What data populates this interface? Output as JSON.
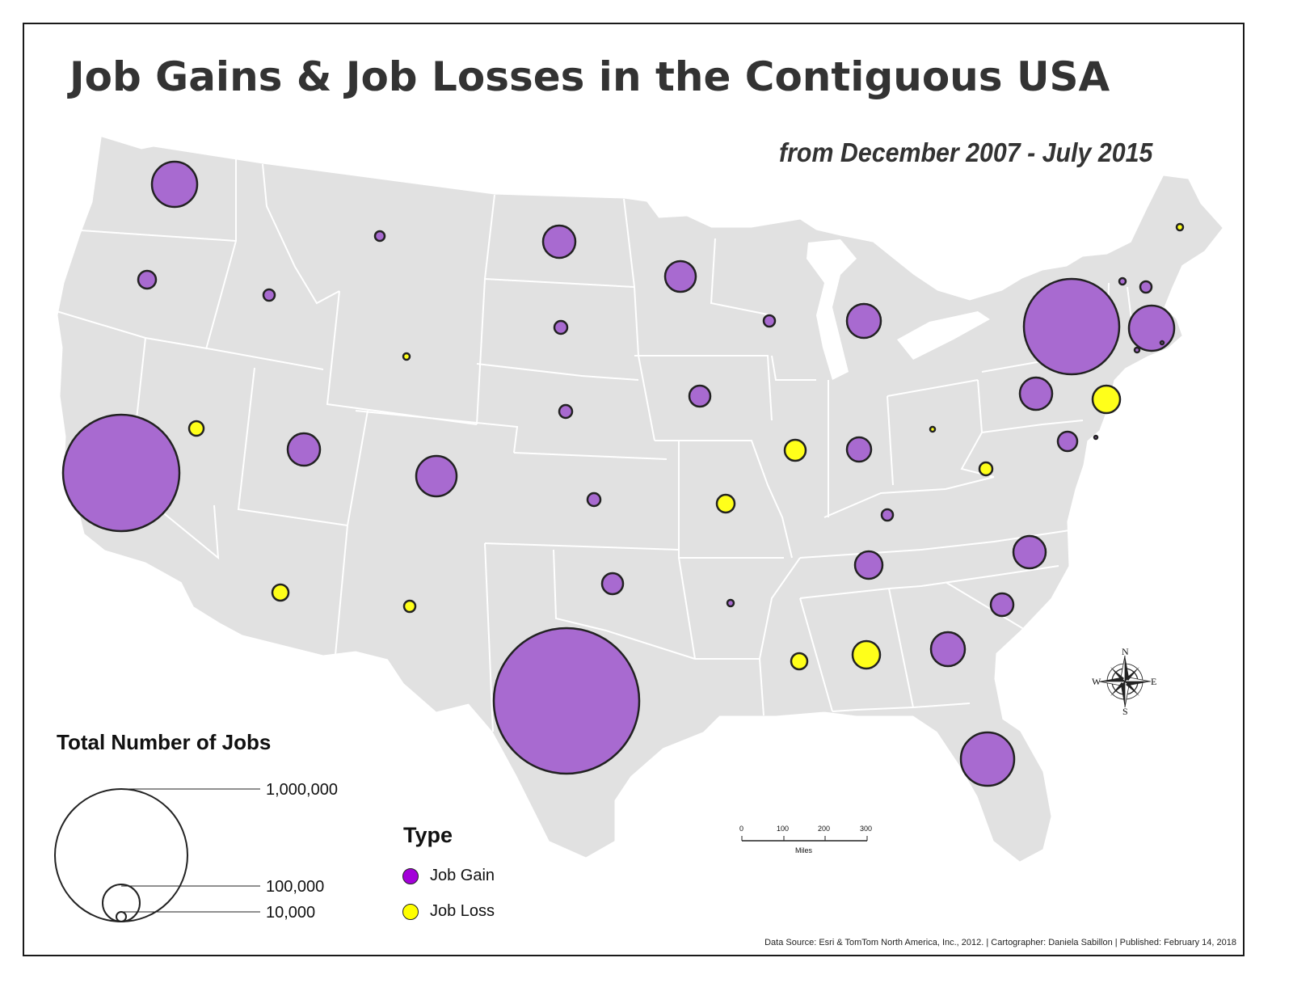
{
  "map": {
    "title": "Job Gains & Job Losses in the Contiguous USA",
    "subtitle": "from December 2007 - July 2015",
    "region": "Contiguous United States",
    "colors": {
      "land": "#e1e1e1",
      "borders": "#ffffff",
      "job_gain": "#a86ad0",
      "job_loss": "#ffff1a",
      "outline": "#222222"
    }
  },
  "legend": {
    "size_title": "Total Number of Jobs",
    "size_labels": [
      "1,000,000",
      "100,000",
      "10,000"
    ],
    "type_title": "Type",
    "types": [
      {
        "label": "Job Gain",
        "color": "#a300d9"
      },
      {
        "label": "Job Loss",
        "color": "#ffff00"
      }
    ]
  },
  "scale_bar": {
    "ticks": [
      "0",
      "100",
      "200",
      "300"
    ],
    "unit": "Miles"
  },
  "compass": {
    "n": "N",
    "s": "S",
    "e": "E",
    "w": "W"
  },
  "source_note": "Data Source: Esri & TomTom North America, Inc., 2012.  |  Cartographer: Daniela Sabillon  |  Published: February 14, 2018",
  "symbols": [
    {
      "state": "Washington",
      "type": "gain",
      "size": 3
    },
    {
      "state": "Oregon",
      "type": "gain",
      "size": 1
    },
    {
      "state": "California",
      "type": "gain",
      "size": 6
    },
    {
      "state": "Nevada",
      "type": "loss",
      "size": 1
    },
    {
      "state": "Idaho",
      "type": "gain",
      "size": 0
    },
    {
      "state": "Montana",
      "type": "gain",
      "size": 0
    },
    {
      "state": "Wyoming",
      "type": "loss",
      "size": 0
    },
    {
      "state": "Utah",
      "type": "gain",
      "size": 2
    },
    {
      "state": "Colorado",
      "type": "gain",
      "size": 3
    },
    {
      "state": "Arizona",
      "type": "loss",
      "size": 1
    },
    {
      "state": "New Mexico",
      "type": "loss",
      "size": 0
    },
    {
      "state": "North Dakota",
      "type": "gain",
      "size": 2
    },
    {
      "state": "South Dakota",
      "type": "gain",
      "size": 0
    },
    {
      "state": "Nebraska",
      "type": "gain",
      "size": 0
    },
    {
      "state": "Kansas",
      "type": "gain",
      "size": 0
    },
    {
      "state": "Oklahoma",
      "type": "gain",
      "size": 1
    },
    {
      "state": "Texas",
      "type": "gain",
      "size": 7
    },
    {
      "state": "Minnesota",
      "type": "gain",
      "size": 2
    },
    {
      "state": "Iowa",
      "type": "gain",
      "size": 1
    },
    {
      "state": "Missouri",
      "type": "loss",
      "size": 1
    },
    {
      "state": "Arkansas",
      "type": "gain",
      "size": 0
    },
    {
      "state": "Wisconsin",
      "type": "gain",
      "size": 0
    },
    {
      "state": "Illinois",
      "type": "loss",
      "size": 1
    },
    {
      "state": "Michigan",
      "type": "gain",
      "size": 2
    },
    {
      "state": "Indiana",
      "type": "gain",
      "size": 1
    },
    {
      "state": "Ohio",
      "type": "loss",
      "size": 0
    },
    {
      "state": "Kentucky",
      "type": "gain",
      "size": 0
    },
    {
      "state": "Tennessee",
      "type": "gain",
      "size": 1
    },
    {
      "state": "Mississippi",
      "type": "loss",
      "size": 1
    },
    {
      "state": "Alabama",
      "type": "loss",
      "size": 2
    },
    {
      "state": "Georgia",
      "type": "gain",
      "size": 2
    },
    {
      "state": "Florida",
      "type": "gain",
      "size": 3
    },
    {
      "state": "South Carolina",
      "type": "gain",
      "size": 1
    },
    {
      "state": "North Carolina",
      "type": "gain",
      "size": 2
    },
    {
      "state": "Virginia",
      "type": "gain",
      "size": 1
    },
    {
      "state": "West Virginia",
      "type": "loss",
      "size": 0
    },
    {
      "state": "Pennsylvania",
      "type": "gain",
      "size": 2
    },
    {
      "state": "New Jersey",
      "type": "loss",
      "size": 2
    },
    {
      "state": "Delaware",
      "type": "gain",
      "size": 0
    },
    {
      "state": "New York",
      "type": "gain",
      "size": 6
    },
    {
      "state": "Massachusetts",
      "type": "gain",
      "size": 3
    },
    {
      "state": "Vermont",
      "type": "gain",
      "size": 0
    },
    {
      "state": "New Hampshire",
      "type": "gain",
      "size": 0
    },
    {
      "state": "Connecticut",
      "type": "gain",
      "size": 0
    },
    {
      "state": "Rhode Island",
      "type": "gain",
      "size": 0
    },
    {
      "state": "Maine",
      "type": "loss",
      "size": 0
    }
  ]
}
